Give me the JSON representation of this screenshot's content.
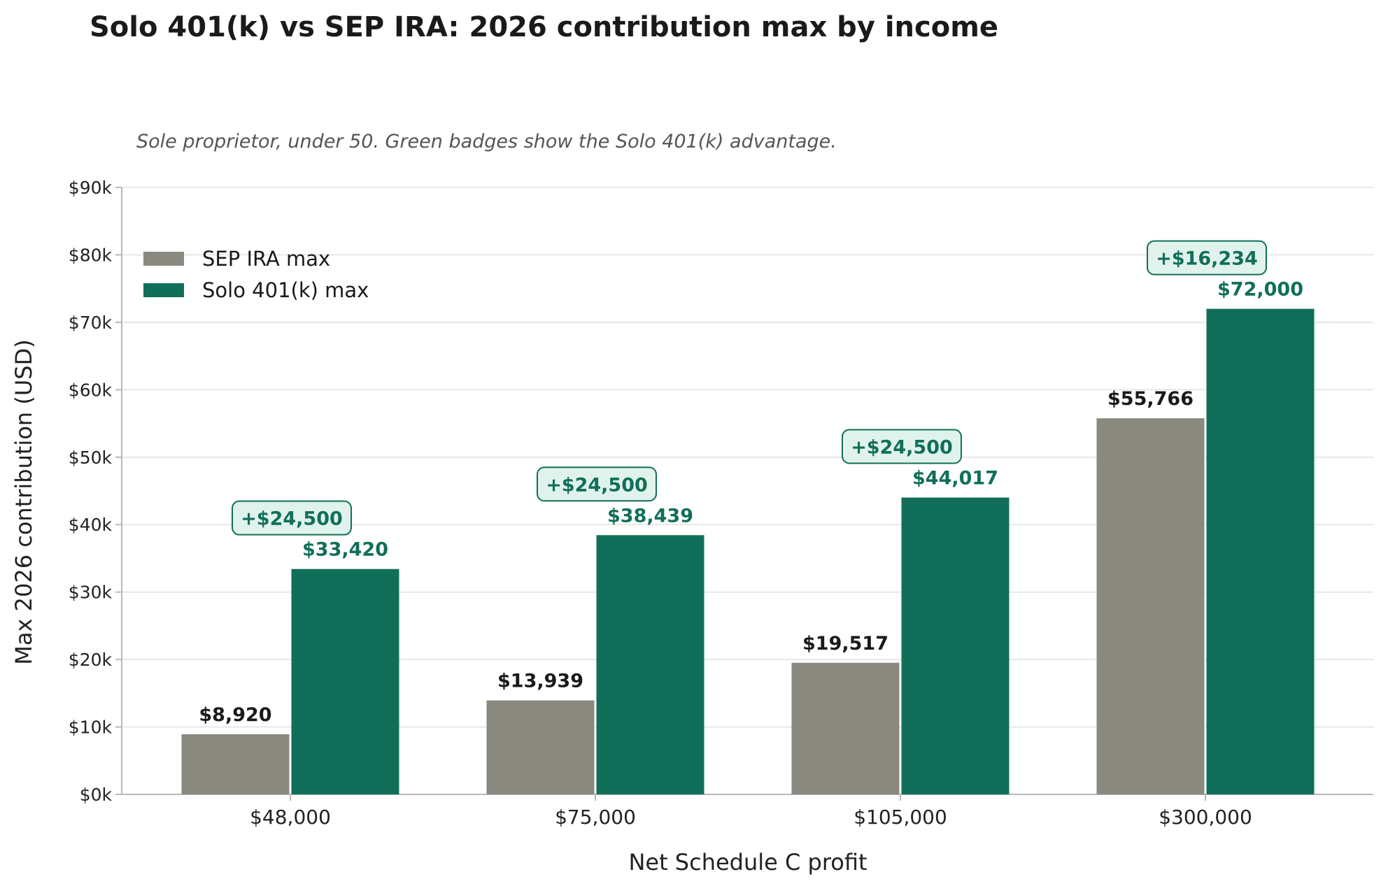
{
  "colors": {
    "sep": "#898980",
    "solo": "#116f59",
    "badge_bg": "#e0f2ec",
    "badge_border": "#116f59",
    "grid": "#e3e3e3",
    "axis": "#b8b8b8"
  },
  "chart_data": {
    "type": "bar",
    "title": "Solo 401(k) vs SEP IRA: 2026 contribution max by income",
    "subtitle": "Sole proprietor, under 50. Green badges show the Solo 401(k) advantage.",
    "xlabel": "Net Schedule C profit",
    "ylabel": "Max 2026 contribution (USD)",
    "ylim": [
      0,
      90000
    ],
    "yticks": [
      {
        "value": 0,
        "label": "$0k"
      },
      {
        "value": 10000,
        "label": "$10k"
      },
      {
        "value": 20000,
        "label": "$20k"
      },
      {
        "value": 30000,
        "label": "$30k"
      },
      {
        "value": 40000,
        "label": "$40k"
      },
      {
        "value": 50000,
        "label": "$50k"
      },
      {
        "value": 60000,
        "label": "$60k"
      },
      {
        "value": 70000,
        "label": "$70k"
      },
      {
        "value": 80000,
        "label": "$80k"
      },
      {
        "value": 90000,
        "label": "$90k"
      }
    ],
    "categories": [
      "$48,000",
      "$75,000",
      "$105,000",
      "$300,000"
    ],
    "series": [
      {
        "name": "SEP IRA max",
        "values": [
          8920,
          13939,
          19517,
          55766
        ],
        "labels": [
          "$8,920",
          "$13,939",
          "$19,517",
          "$55,766"
        ]
      },
      {
        "name": "Solo 401(k) max",
        "values": [
          33420,
          38439,
          44017,
          72000
        ],
        "labels": [
          "$33,420",
          "$38,439",
          "$44,017",
          "$72,000"
        ]
      }
    ],
    "badges": [
      "+$24,500",
      "+$24,500",
      "+$24,500",
      "+$16,234"
    ],
    "legend_position": "top-left",
    "grid": "horizontal"
  }
}
